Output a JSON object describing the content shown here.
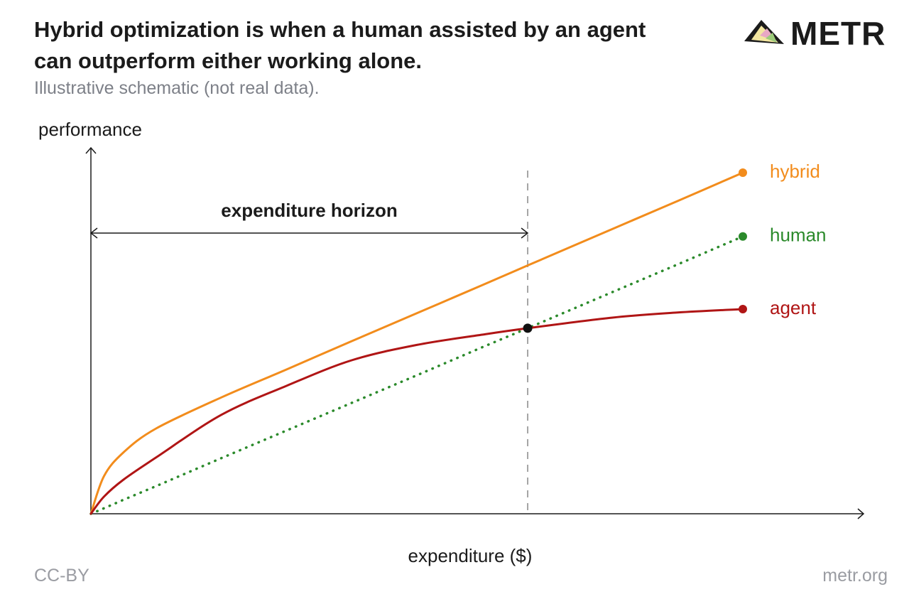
{
  "chart_data": {
    "type": "line",
    "title": "Hybrid optimization is when a human assisted by an agent can outperform either working alone.",
    "subtitle": "Illustrative schematic (not real data).",
    "logo": "METR",
    "x_label": "expenditure ($)",
    "y_label": "performance",
    "footer_left": "CC-BY",
    "footer_right": "metr.org",
    "xlim": [
      0,
      100
    ],
    "ylim": [
      0,
      100
    ],
    "x": [
      0,
      2,
      5,
      10,
      20,
      30,
      40,
      50,
      60,
      67,
      80,
      90,
      100
    ],
    "series": [
      {
        "name": "hybrid",
        "color": "#f28c1c",
        "style": "solid",
        "values": [
          0,
          11,
          18,
          25,
          34.1,
          42.3,
          50.6,
          58.8,
          67,
          72.8,
          83.5,
          91.7,
          100
        ]
      },
      {
        "name": "human",
        "color": "#2b8a2b",
        "style": "dotted",
        "values": [
          0,
          1.6,
          4.1,
          8.1,
          16.3,
          24.4,
          32.5,
          40.6,
          48.8,
          54.4,
          65,
          73.1,
          81.3
        ]
      },
      {
        "name": "agent",
        "color": "#b01515",
        "style": "solid",
        "values": [
          0,
          5,
          10,
          16.5,
          29,
          37.5,
          45,
          49.5,
          52.5,
          54.4,
          57.5,
          59,
          60
        ]
      }
    ],
    "annotation": {
      "text": "expenditure horizon",
      "x": 67
    }
  }
}
